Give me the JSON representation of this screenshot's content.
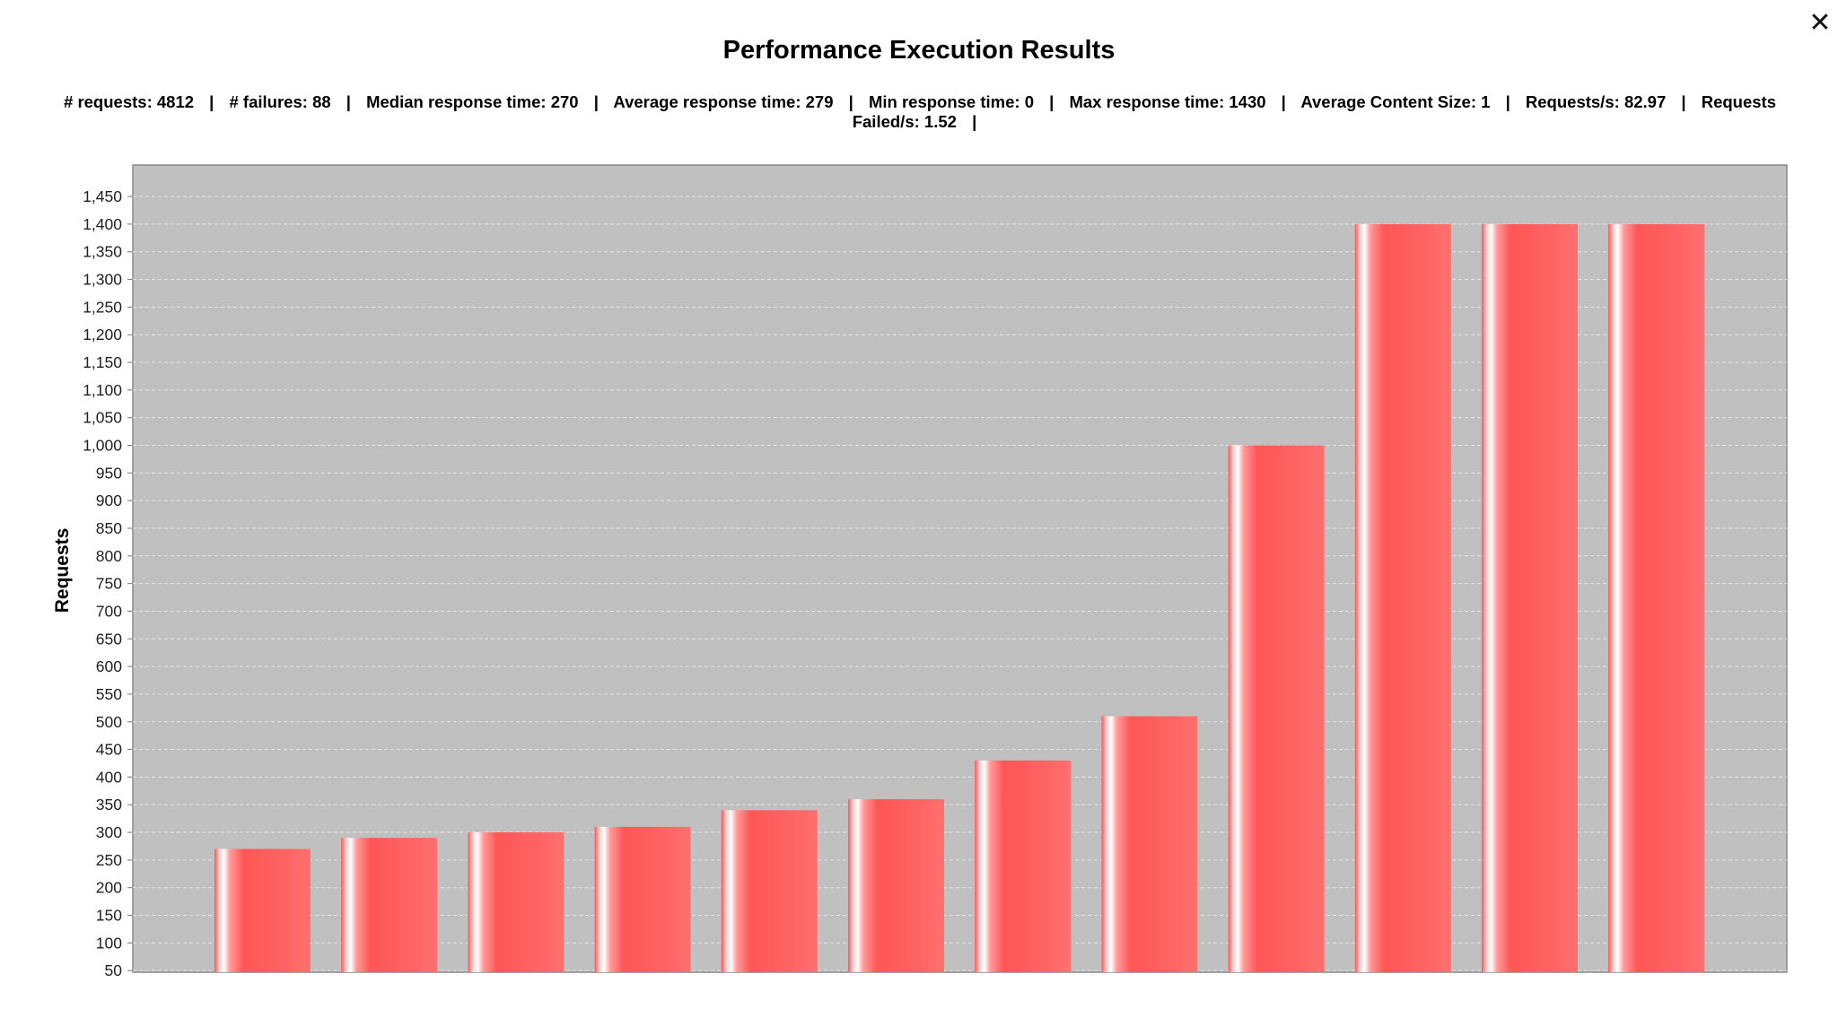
{
  "window": {
    "close_icon": "close-icon"
  },
  "chart_data": {
    "type": "bar",
    "title": "Performance Execution Results",
    "summary": [
      {
        "label": "# requests",
        "value": "4812"
      },
      {
        "label": "# failures",
        "value": "88"
      },
      {
        "label": "Median response time",
        "value": "270"
      },
      {
        "label": "Average response time",
        "value": "279"
      },
      {
        "label": "Min response time",
        "value": "0"
      },
      {
        "label": "Max response time",
        "value": "1430"
      },
      {
        "label": "Average Content Size",
        "value": "1"
      },
      {
        "label": "Requests/s",
        "value": "82.97"
      },
      {
        "label": "Requests Failed/s",
        "value": "1.52"
      }
    ],
    "xlabel": "",
    "ylabel": "Requests",
    "ylim": [
      0,
      1450
    ],
    "yticks": [
      "50",
      "100",
      "150",
      "200",
      "250",
      "300",
      "350",
      "400",
      "450",
      "500",
      "550",
      "600",
      "650",
      "700",
      "750",
      "800",
      "850",
      "900",
      "950",
      "1,000",
      "1,050",
      "1,100",
      "1,150",
      "1,200",
      "1,250",
      "1,300",
      "1,350",
      "1,400",
      "1,450"
    ],
    "ytick_step": 50,
    "values": [
      270,
      290,
      300,
      310,
      340,
      360,
      430,
      510,
      1000,
      1400,
      1400,
      1400
    ],
    "grid": true,
    "colors": {
      "bar": "#ff5a5a",
      "plot_background": "#c0c0c0",
      "gridline": "#e6e6e6"
    }
  }
}
